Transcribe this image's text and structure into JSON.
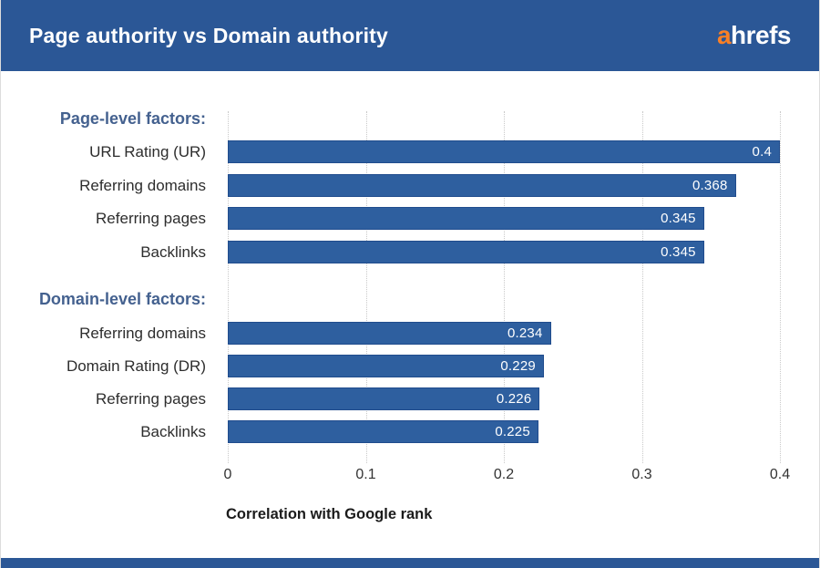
{
  "header": {
    "title": "Page authority vs Domain authority",
    "logo_accent_text": "a",
    "logo_rest_text": "hrefs"
  },
  "colors": {
    "header_bg": "#2b5796",
    "bar": "#2e5f9f",
    "bar_border": "#204c8d",
    "heading": "#44618f",
    "text": "#2d2d2d",
    "tick": "#333333",
    "gridline": "#c9c9c9",
    "axis_title": "#1b1b1b",
    "logo_accent": "#f98026",
    "side_border": "#dcdcdc"
  },
  "chart_data": {
    "type": "bar",
    "orientation": "horizontal",
    "title": "Page authority vs Domain authority",
    "xlabel": "Correlation with Google rank",
    "xlim": [
      0,
      0.4
    ],
    "x_ticks": [
      0,
      0.1,
      0.2,
      0.3,
      0.4
    ],
    "x_tick_labels": [
      "0",
      "0.1",
      "0.2",
      "0.3",
      "0.4"
    ],
    "grid": "vertical-dotted",
    "value_labels_position": "inside-end",
    "groups": [
      {
        "heading": "Page-level factors:",
        "bars": [
          {
            "label": "URL Rating (UR)",
            "value": 0.4,
            "value_label": "0.4"
          },
          {
            "label": "Referring domains",
            "value": 0.368,
            "value_label": "0.368"
          },
          {
            "label": "Referring pages",
            "value": 0.345,
            "value_label": "0.345"
          },
          {
            "label": "Backlinks",
            "value": 0.345,
            "value_label": "0.345"
          }
        ]
      },
      {
        "heading": "Domain-level factors:",
        "bars": [
          {
            "label": "Referring domains",
            "value": 0.234,
            "value_label": "0.234"
          },
          {
            "label": "Domain Rating (DR)",
            "value": 0.229,
            "value_label": "0.229"
          },
          {
            "label": "Referring pages",
            "value": 0.226,
            "value_label": "0.226"
          },
          {
            "label": "Backlinks",
            "value": 0.225,
            "value_label": "0.225"
          }
        ]
      }
    ]
  }
}
